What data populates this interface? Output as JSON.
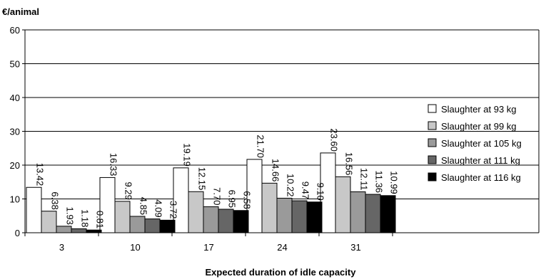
{
  "chart_data": {
    "type": "bar",
    "title": "",
    "xlabel": "Expected duration of idle capacity",
    "ylabel": "€/animal",
    "ylim": [
      0,
      60
    ],
    "yticks": [
      0,
      10,
      20,
      30,
      40,
      50,
      60
    ],
    "grid": true,
    "legend_position": "right",
    "categories": [
      "3",
      "10",
      "17",
      "24",
      "31"
    ],
    "series": [
      {
        "name": "Slaughter at 93 kg",
        "color": "#ffffff",
        "values": [
          13.42,
          16.33,
          19.19,
          21.7,
          23.6
        ],
        "labels": [
          "13.42",
          "16.33",
          "19.19",
          "21.70",
          "23.60"
        ]
      },
      {
        "name": "Slaughter at 99 kg",
        "color": "#c8c8c8",
        "values": [
          6.38,
          9.29,
          12.15,
          14.66,
          16.56
        ],
        "labels": [
          "6.38",
          "9.29",
          "12.15",
          "14.66",
          "16.56"
        ]
      },
      {
        "name": "Slaughter at 105 kg",
        "color": "#9a9a9a",
        "values": [
          1.93,
          4.85,
          7.7,
          10.22,
          12.11
        ],
        "labels": [
          "1.93",
          "4.85",
          "7.70",
          "10.22",
          "12.11"
        ]
      },
      {
        "name": "Slaughter at 111 kg",
        "color": "#666666",
        "values": [
          1.18,
          4.09,
          6.95,
          9.47,
          11.36
        ],
        "labels": [
          "1.18",
          "4.09",
          "6.95",
          "9.47",
          "11.36"
        ]
      },
      {
        "name": "Slaughter at 116 kg",
        "color": "#000000",
        "values": [
          0.81,
          3.72,
          6.58,
          9.1,
          10.99
        ],
        "labels": [
          "0.81",
          "3.72",
          "6.58",
          "9.10",
          "10.99"
        ]
      }
    ]
  }
}
